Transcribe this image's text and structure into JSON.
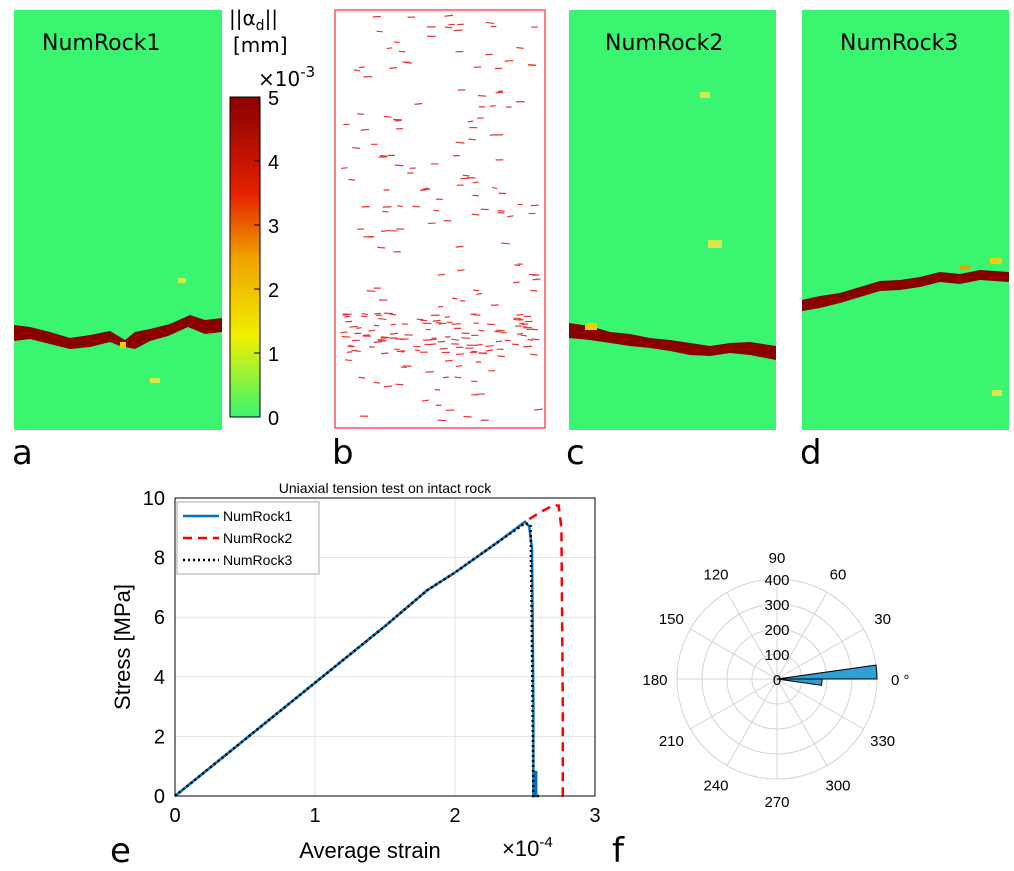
{
  "panels": {
    "a": {
      "letter": "a",
      "title": "NumRock1"
    },
    "b": {
      "letter": "b"
    },
    "c": {
      "letter": "c",
      "title": "NumRock2"
    },
    "d": {
      "letter": "d",
      "title": "NumRock3"
    },
    "e": {
      "letter": "e"
    },
    "f": {
      "letter": "f"
    }
  },
  "colorbar": {
    "label_line1": "||α",
    "label_subscript": "d",
    "label_line1_end": "||",
    "label_line2": "[mm]",
    "exponent_base": "×10",
    "exponent_power": "-3",
    "ticks": [
      "0",
      "1",
      "2",
      "3",
      "4",
      "5"
    ],
    "colors": [
      "#39f56f",
      "#f0f000",
      "#f0a000",
      "#e42000",
      "#8a0000"
    ]
  },
  "chart_data": [
    {
      "type": "line",
      "title": "Uniaxial tension test on intact rock",
      "xlabel": "Average strain",
      "x_exponent_base": "×10",
      "x_exponent_power": "-4",
      "ylabel": "Stress [MPa]",
      "xlim": [
        0,
        3
      ],
      "ylim": [
        0,
        10
      ],
      "xticks": [
        "0",
        "1",
        "2",
        "3"
      ],
      "yticks": [
        "0",
        "2",
        "4",
        "6",
        "8",
        "10"
      ],
      "grid": true,
      "legend_position": "top-left",
      "series": [
        {
          "name": "NumRock1",
          "color": "#0072bd",
          "dash": "solid",
          "x": [
            0,
            0.5,
            1.0,
            1.5,
            1.8,
            2.0,
            2.3,
            2.5,
            2.53,
            2.55,
            2.56,
            2.56,
            2.57,
            2.57,
            2.58,
            2.58,
            2.59,
            2.59
          ],
          "y": [
            0,
            1.9,
            3.8,
            5.7,
            6.9,
            7.5,
            8.5,
            9.2,
            9.05,
            8.3,
            3.0,
            0.0,
            0.0,
            0.8,
            0.8,
            0.0,
            0.0,
            0.0
          ]
        },
        {
          "name": "NumRock2",
          "color": "#ff0000",
          "dash": "dashed",
          "x": [
            0,
            0.5,
            1.0,
            1.5,
            1.8,
            2.0,
            2.3,
            2.5,
            2.6,
            2.7,
            2.74,
            2.76,
            2.77,
            2.77,
            2.8
          ],
          "y": [
            0,
            1.9,
            3.8,
            5.7,
            6.9,
            7.5,
            8.5,
            9.2,
            9.5,
            9.75,
            9.75,
            9.0,
            3.0,
            0.0,
            0.0
          ]
        },
        {
          "name": "NumRock3",
          "color": "#000000",
          "dash": "dotted",
          "x": [
            0,
            0.5,
            1.0,
            1.5,
            1.8,
            2.0,
            2.3,
            2.5,
            2.54,
            2.55,
            2.56,
            2.6
          ],
          "y": [
            0,
            1.9,
            3.8,
            5.7,
            6.9,
            7.5,
            8.5,
            9.15,
            9.1,
            5.0,
            0.0,
            0.0
          ]
        }
      ]
    },
    {
      "type": "polar-histogram",
      "r_ticks": [
        "100",
        "200",
        "300",
        "400"
      ],
      "r_max": 400,
      "theta_ticks": [
        "0 °",
        "30",
        "60",
        "90",
        "120",
        "150",
        "180",
        "210",
        "240",
        "270",
        "300",
        "330"
      ],
      "fill": "#2f9fd6",
      "bins": [
        {
          "theta_start": -8,
          "theta_end": 0,
          "value": 180
        },
        {
          "theta_start": 0,
          "theta_end": 8,
          "value": 400
        }
      ]
    }
  ]
}
